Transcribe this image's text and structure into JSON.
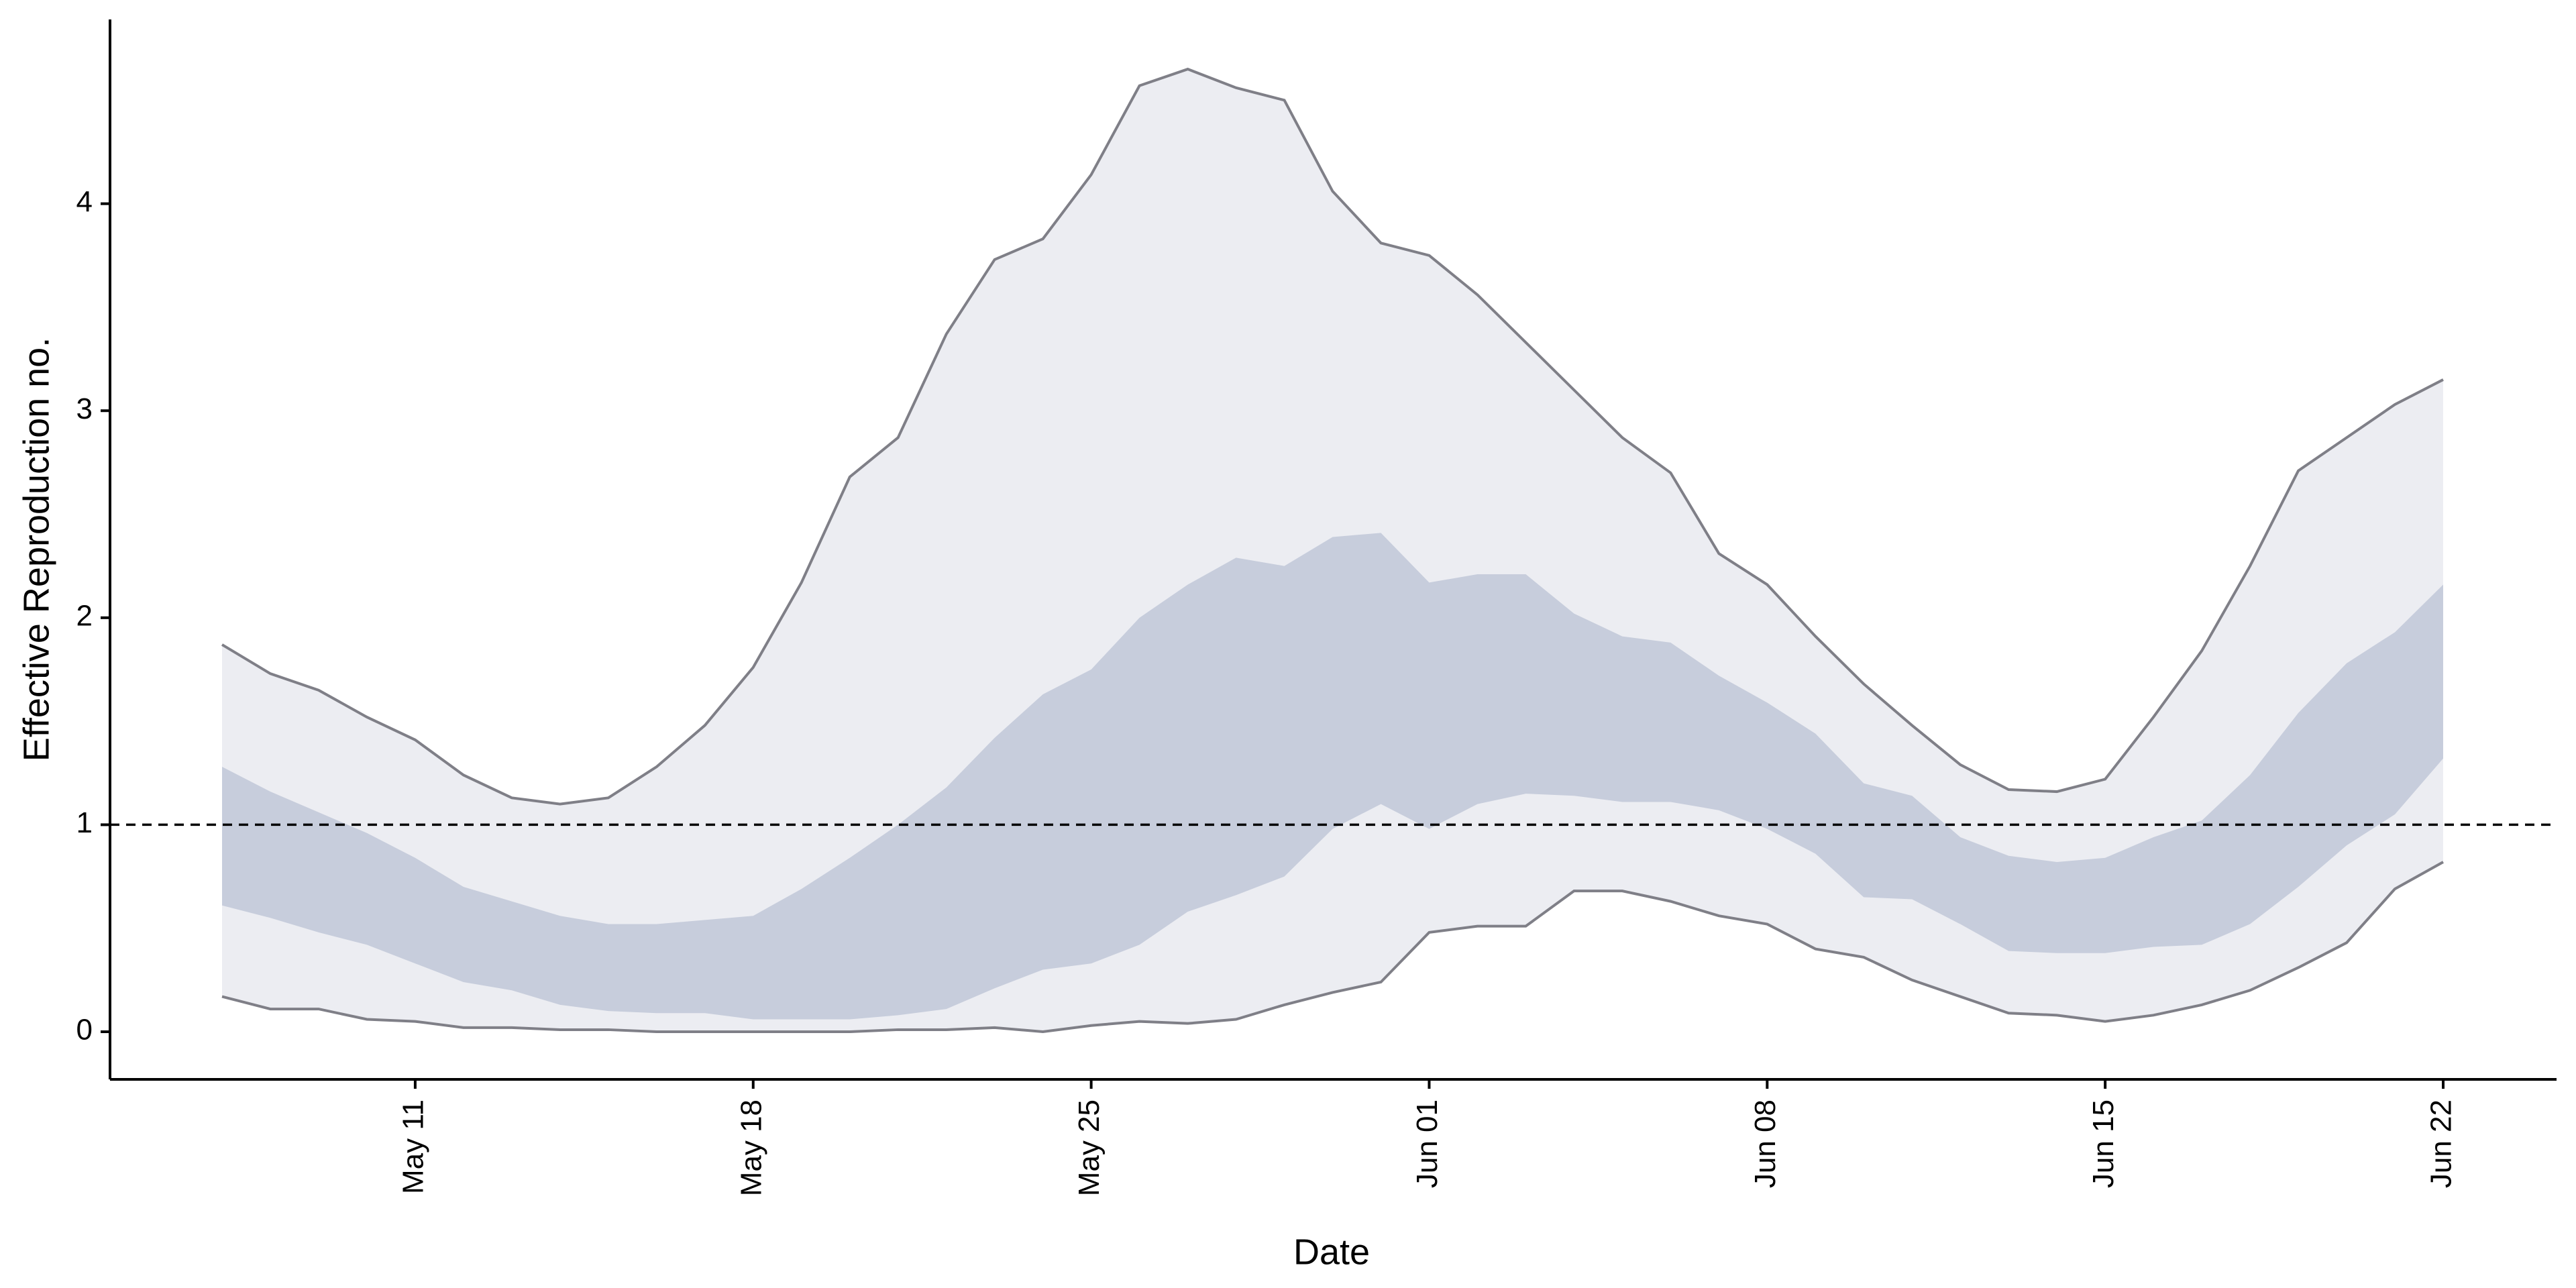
{
  "chart_data": {
    "type": "band",
    "x_label": "Date",
    "y_label": "Effective Reproduction no.",
    "x": [
      "May 07",
      "May 08",
      "May 09",
      "May 10",
      "May 11",
      "May 12",
      "May 13",
      "May 14",
      "May 15",
      "May 16",
      "May 17",
      "May 18",
      "May 19",
      "May 20",
      "May 21",
      "May 22",
      "May 23",
      "May 24",
      "May 25",
      "May 26",
      "May 27",
      "May 28",
      "May 29",
      "May 30",
      "May 31",
      "Jun 01",
      "Jun 02",
      "Jun 03",
      "Jun 04",
      "Jun 05",
      "Jun 06",
      "Jun 07",
      "Jun 08",
      "Jun 09",
      "Jun 10",
      "Jun 11",
      "Jun 12",
      "Jun 13",
      "Jun 14",
      "Jun 15",
      "Jun 16",
      "Jun 17",
      "Jun 18",
      "Jun 19",
      "Jun 20",
      "Jun 21",
      "Jun 22"
    ],
    "xticks": [
      "May 11",
      "May 18",
      "May 25",
      "Jun 01",
      "Jun 08",
      "Jun 15",
      "Jun 22"
    ],
    "ylim": [
      -0.23,
      4.89
    ],
    "yticks": [
      0,
      1,
      2,
      3,
      4
    ],
    "reference_line": 1,
    "line_color": "#7f7f87",
    "outer_band": {
      "color": "#ecedf2",
      "upper": [
        1.87,
        1.73,
        1.65,
        1.52,
        1.41,
        1.24,
        1.13,
        1.1,
        1.13,
        1.28,
        1.48,
        1.76,
        2.17,
        2.68,
        2.87,
        3.37,
        3.73,
        3.83,
        4.14,
        4.57,
        4.65,
        4.56,
        4.5,
        4.06,
        3.81,
        3.75,
        3.56,
        3.33,
        3.1,
        2.87,
        2.7,
        2.31,
        2.16,
        1.91,
        1.68,
        1.48,
        1.29,
        1.17,
        1.16,
        1.22,
        1.52,
        1.84,
        2.25,
        2.71,
        2.87,
        3.03,
        3.15
      ],
      "lower": [
        0.17,
        0.11,
        0.11,
        0.06,
        0.05,
        0.02,
        0.02,
        0.01,
        0.01,
        0,
        0,
        0,
        0,
        0,
        0.01,
        0.01,
        0.02,
        0,
        0.03,
        0.05,
        0.04,
        0.06,
        0.13,
        0.19,
        0.24,
        0.48,
        0.51,
        0.51,
        0.68,
        0.68,
        0.63,
        0.56,
        0.52,
        0.4,
        0.36,
        0.25,
        0.17,
        0.09,
        0.08,
        0.05,
        0.08,
        0.13,
        0.2,
        0.31,
        0.43,
        0.69,
        0.82
      ]
    },
    "inner_band": {
      "color": "#c7cddc",
      "upper": [
        1.28,
        1.16,
        1.06,
        0.96,
        0.84,
        0.7,
        0.63,
        0.56,
        0.52,
        0.52,
        0.54,
        0.56,
        0.69,
        0.84,
        1.0,
        1.18,
        1.42,
        1.63,
        1.75,
        2.0,
        2.16,
        2.29,
        2.25,
        2.39,
        2.41,
        2.17,
        2.21,
        2.21,
        2.02,
        1.91,
        1.88,
        1.72,
        1.59,
        1.44,
        1.2,
        1.14,
        0.94,
        0.85,
        0.82,
        0.84,
        0.94,
        1.02,
        1.24,
        1.54,
        1.78,
        1.93,
        2.16
      ],
      "lower": [
        0.61,
        0.55,
        0.48,
        0.42,
        0.33,
        0.24,
        0.2,
        0.13,
        0.1,
        0.09,
        0.09,
        0.06,
        0.06,
        0.06,
        0.08,
        0.11,
        0.21,
        0.3,
        0.33,
        0.42,
        0.58,
        0.66,
        0.75,
        0.98,
        1.1,
        0.98,
        1.1,
        1.15,
        1.14,
        1.11,
        1.11,
        1.07,
        0.98,
        0.86,
        0.65,
        0.64,
        0.52,
        0.39,
        0.38,
        0.38,
        0.41,
        0.42,
        0.52,
        0.7,
        0.9,
        1.05,
        1.32
      ]
    }
  }
}
